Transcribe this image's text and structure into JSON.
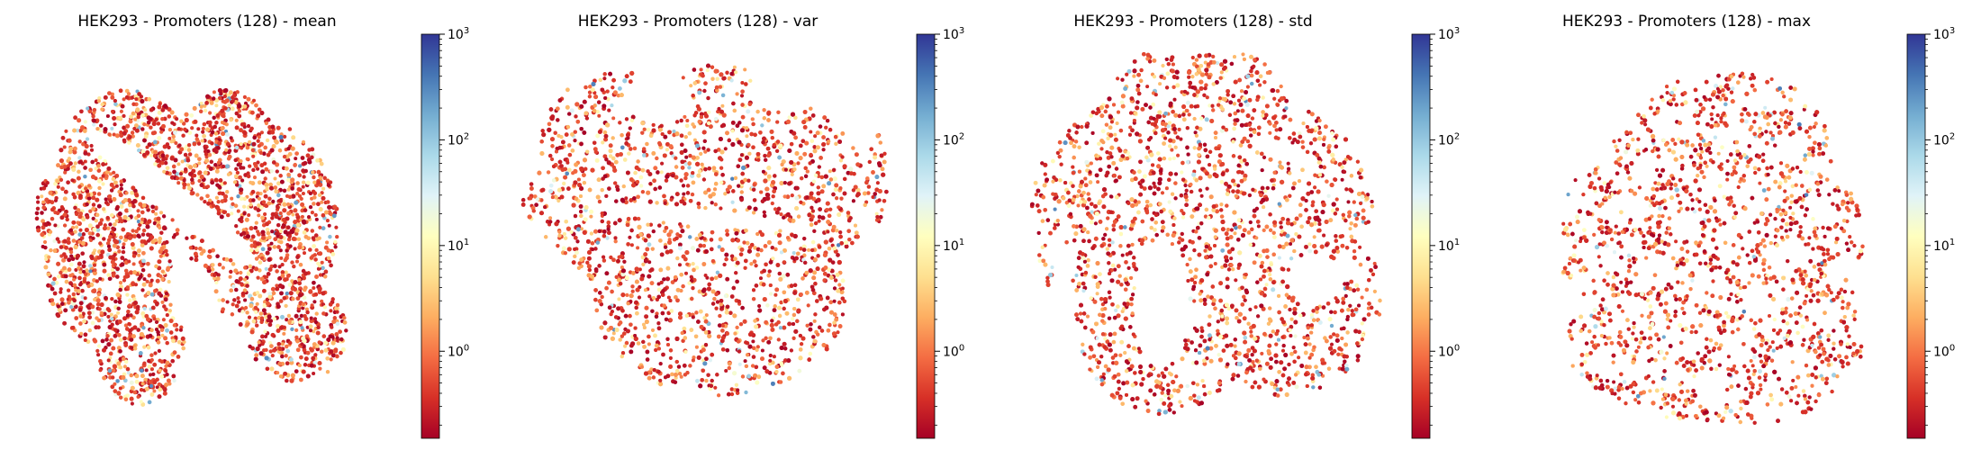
{
  "chart_data": [
    {
      "type": "scatter",
      "title": "HEK293 - Promoters (128) - mean",
      "xlabel": "",
      "ylabel": "",
      "colorbar": {
        "scale": "log",
        "range": [
          0.15,
          1000
        ],
        "ticks": [
          {
            "base": "10",
            "exp": "0"
          },
          {
            "base": "10",
            "exp": "1"
          },
          {
            "base": "10",
            "exp": "2"
          },
          {
            "base": "10",
            "exp": "3"
          }
        ],
        "colormap": "RdYlBu"
      },
      "description_points": "dense t-SNE style embedding, values mostly 0.2–3, sparse high values"
    },
    {
      "type": "scatter",
      "title": "HEK293 - Promoters (128) - var",
      "xlabel": "",
      "ylabel": "",
      "colorbar": {
        "scale": "log",
        "range": [
          0.15,
          1000
        ],
        "ticks": [
          {
            "base": "10",
            "exp": "0"
          },
          {
            "base": "10",
            "exp": "1"
          },
          {
            "base": "10",
            "exp": "2"
          },
          {
            "base": "10",
            "exp": "3"
          }
        ],
        "colormap": "RdYlBu"
      }
    },
    {
      "type": "scatter",
      "title": "HEK293 - Promoters (128) - std",
      "xlabel": "",
      "ylabel": "",
      "colorbar": {
        "scale": "log",
        "range": [
          0.15,
          1000
        ],
        "ticks": [
          {
            "base": "10",
            "exp": "0"
          },
          {
            "base": "10",
            "exp": "1"
          },
          {
            "base": "10",
            "exp": "2"
          },
          {
            "base": "10",
            "exp": "3"
          }
        ],
        "colormap": "RdYlBu"
      }
    },
    {
      "type": "scatter",
      "title": "HEK293 - Promoters (128) - max",
      "xlabel": "",
      "ylabel": "",
      "colorbar": {
        "scale": "log",
        "range": [
          0.15,
          1000
        ],
        "ticks": [
          {
            "base": "10",
            "exp": "0"
          },
          {
            "base": "10",
            "exp": "1"
          },
          {
            "base": "10",
            "exp": "2"
          },
          {
            "base": "10",
            "exp": "3"
          }
        ],
        "colormap": "RdYlBu"
      }
    }
  ],
  "colors": {
    "cmap_stops": [
      "#a50026",
      "#d73027",
      "#f46d43",
      "#fdae61",
      "#fee090",
      "#ffffbf",
      "#e0f3f8",
      "#abd9e9",
      "#74add1",
      "#4575b4",
      "#313695"
    ]
  }
}
